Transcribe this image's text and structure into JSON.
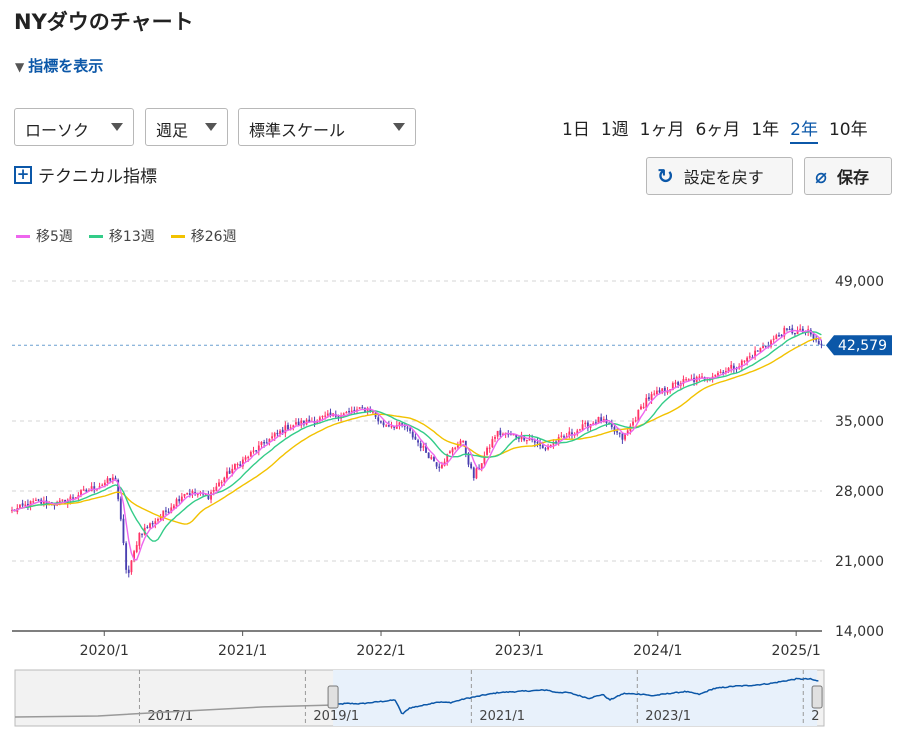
{
  "page": {
    "title": "NYダウのチャート"
  },
  "controls": {
    "indicator_toggle": "指標を表示",
    "candle_select": "ローソク",
    "period_select": "週足",
    "scale_select": "標準スケール",
    "periods": [
      "1日",
      "1週",
      "1ヶ月",
      "6ヶ月",
      "1年",
      "2年",
      "10年"
    ],
    "active_period": "2年",
    "technical_label": "テクニカル指標",
    "reset_button": "設定を戻す",
    "save_button": "保存"
  },
  "colors": {
    "up": "#ff3366",
    "down": "#4a3fb0",
    "ma5": "#ee66ee",
    "ma13": "#33cc88",
    "ma26": "#f2c200",
    "accent": "#0b57a8",
    "price_label": "#0b57a8"
  },
  "chart_data": {
    "type": "candlestick",
    "title": "NYダウのチャート",
    "interval": "週足",
    "ylim": [
      14000,
      49000
    ],
    "yticks": [
      "49,000",
      "35,000",
      "28,000",
      "21,000",
      "14,000"
    ],
    "ytick_values": [
      49000,
      35000,
      28000,
      21000,
      14000
    ],
    "grid": true,
    "xlabels": [
      "2020/1",
      "2021/1",
      "2022/1",
      "2023/1",
      "2024/1",
      "2025/1"
    ],
    "last_price": 42579,
    "last_price_label": "42,579",
    "legend": [
      {
        "name": "移5週",
        "color": "#ee66ee"
      },
      {
        "name": "移13週",
        "color": "#33cc88"
      },
      {
        "name": "移26週",
        "color": "#f2c200"
      }
    ],
    "anchors": [
      [
        "2019-05",
        26000
      ],
      [
        "2019-07",
        26900
      ],
      [
        "2019-09",
        26700
      ],
      [
        "2019-11",
        27800
      ],
      [
        "2020-01",
        28800
      ],
      [
        "2020-02",
        29300
      ],
      [
        "2020-03",
        19200
      ],
      [
        "2020-04",
        23700
      ],
      [
        "2020-06",
        25600
      ],
      [
        "2020-08",
        27900
      ],
      [
        "2020-10",
        27500
      ],
      [
        "2020-12",
        30100
      ],
      [
        "2021-03",
        32900
      ],
      [
        "2021-05",
        34500
      ],
      [
        "2021-08",
        35300
      ],
      [
        "2021-10",
        35800
      ],
      [
        "2021-12",
        36300
      ],
      [
        "2022-01",
        34700
      ],
      [
        "2022-03",
        34500
      ],
      [
        "2022-05",
        31800
      ],
      [
        "2022-06",
        30500
      ],
      [
        "2022-08",
        33200
      ],
      [
        "2022-09",
        29300
      ],
      [
        "2022-11",
        33800
      ],
      [
        "2023-02",
        33300
      ],
      [
        "2023-03",
        32200
      ],
      [
        "2023-06",
        34100
      ],
      [
        "2023-08",
        35200
      ],
      [
        "2023-10",
        33200
      ],
      [
        "2023-12",
        37200
      ],
      [
        "2024-03",
        38900
      ],
      [
        "2024-05",
        39300
      ],
      [
        "2024-08",
        40600
      ],
      [
        "2024-10",
        42300
      ],
      [
        "2024-12",
        44000
      ],
      [
        "2025-02",
        43900
      ],
      [
        "2025-03",
        42579
      ]
    ],
    "navigator": {
      "xlabels": [
        "2017/1",
        "2019/1",
        "2021/1",
        "2023/1",
        "2"
      ],
      "window_start": "2019-05",
      "window_end": "2025-03"
    }
  }
}
